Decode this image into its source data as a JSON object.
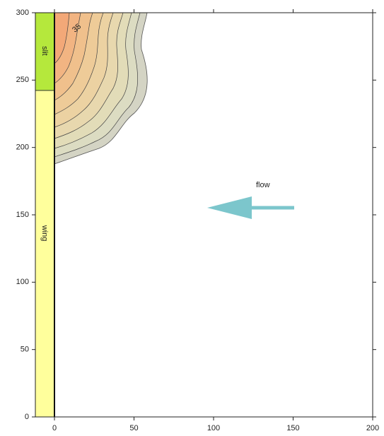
{
  "chart_data": {
    "type": "contour",
    "annotations": {
      "slit": "slit",
      "wing": "wing",
      "flow": "flow",
      "contour_label": "35"
    },
    "xlim": [
      -12,
      200
    ],
    "xticks": [
      0,
      50,
      100,
      150,
      200
    ],
    "ylim": [
      0,
      300
    ],
    "yticks": [
      0,
      50,
      100,
      150,
      200,
      250,
      300
    ]
  }
}
